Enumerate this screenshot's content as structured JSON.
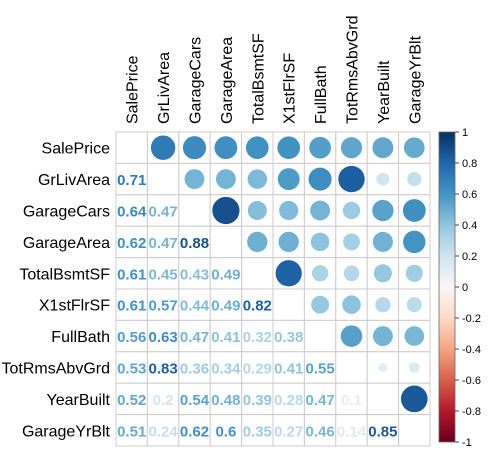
{
  "chart_data": {
    "type": "heatmap",
    "variables": [
      "SalePrice",
      "GrLivArea",
      "GarageCars",
      "GarageArea",
      "TotalBsmtSF",
      "X1stFlrSF",
      "FullBath",
      "TotRmsAbvGrd",
      "YearBuilt",
      "GarageYrBlt"
    ],
    "matrix": [
      [
        1,
        0.71,
        0.64,
        0.62,
        0.61,
        0.61,
        0.56,
        0.53,
        0.52,
        0.51
      ],
      [
        0.71,
        1,
        0.47,
        0.47,
        0.45,
        0.57,
        0.63,
        0.83,
        0.2,
        0.24
      ],
      [
        0.64,
        0.47,
        1,
        0.88,
        0.43,
        0.44,
        0.47,
        0.36,
        0.54,
        0.62
      ],
      [
        0.62,
        0.47,
        0.88,
        1,
        0.49,
        0.49,
        0.41,
        0.34,
        0.48,
        0.6
      ],
      [
        0.61,
        0.45,
        0.43,
        0.49,
        1,
        0.82,
        0.32,
        0.29,
        0.39,
        0.35
      ],
      [
        0.61,
        0.57,
        0.44,
        0.49,
        0.82,
        1,
        0.38,
        0.41,
        0.28,
        0.27
      ],
      [
        0.56,
        0.63,
        0.47,
        0.41,
        0.32,
        0.38,
        1,
        0.55,
        0.47,
        0.46
      ],
      [
        0.53,
        0.83,
        0.36,
        0.34,
        0.29,
        0.41,
        0.55,
        1,
        0.1,
        0.14
      ],
      [
        0.52,
        0.2,
        0.54,
        0.48,
        0.39,
        0.28,
        0.47,
        0.1,
        1,
        0.85
      ],
      [
        0.51,
        0.24,
        0.62,
        0.6,
        0.35,
        0.27,
        0.46,
        0.14,
        0.85,
        1
      ]
    ],
    "lower_labels": [
      [],
      [
        "0.71"
      ],
      [
        "0.64",
        "0.47"
      ],
      [
        "0.62",
        "0.47",
        "0.88"
      ],
      [
        "0.61",
        "0.45",
        "0.43",
        "0.49"
      ],
      [
        "0.61",
        "0.57",
        "0.44",
        "0.49",
        "0.82"
      ],
      [
        "0.56",
        "0.63",
        "0.47",
        "0.41",
        "0.32",
        "0.38"
      ],
      [
        "0.53",
        "0.83",
        "0.36",
        "0.34",
        "0.29",
        "0.41",
        "0.55"
      ],
      [
        "0.52",
        "0.2",
        "0.54",
        "0.48",
        "0.39",
        "0.28",
        "0.47",
        "0.1"
      ],
      [
        "0.51",
        "0.24",
        "0.62",
        "0.6",
        "0.35",
        "0.27",
        "0.46",
        "0.14",
        "0.85"
      ]
    ],
    "upper_glyph": "circle",
    "lower_glyph": "number",
    "colorbar": {
      "range": [
        -1,
        1
      ],
      "ticks": [
        "1",
        "0.8",
        "0.6",
        "0.4",
        "0.2",
        "0",
        "-0.2",
        "-0.4",
        "-0.6",
        "-0.8",
        "-1"
      ]
    },
    "colors": {
      "positive_strong": "#053061",
      "positive_mid": "#4393c3",
      "neutral": "#f7f7f7",
      "negative_mid": "#d6604d",
      "negative_strong": "#67001f",
      "grid": "#cccccc",
      "text": "#000000"
    },
    "title": "",
    "xlabel": "",
    "ylabel": ""
  }
}
